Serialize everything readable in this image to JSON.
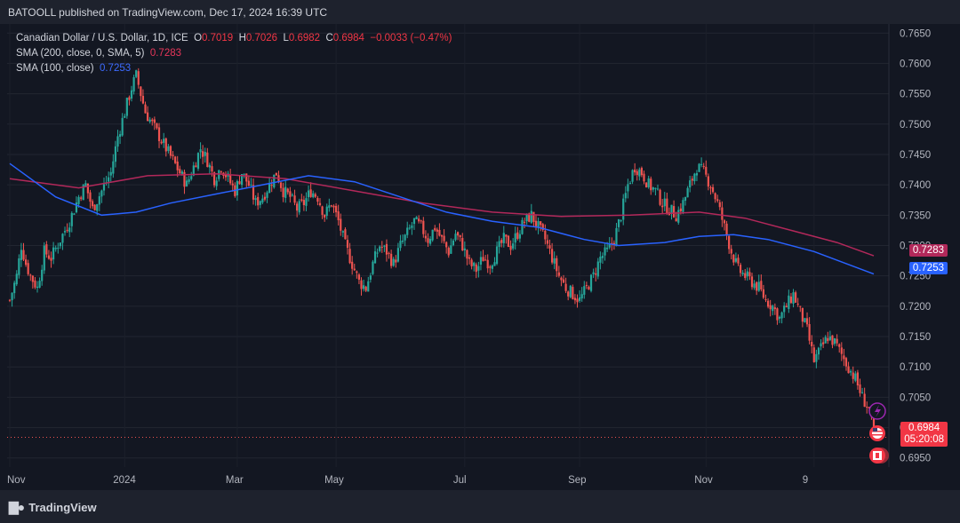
{
  "header": {
    "published_text": "BATOOLL published on TradingView.com, Dec 17, 2024 16:39 UTC"
  },
  "legend": {
    "symbol_line": "Canadian Dollar / U.S. Dollar, 1D, ICE",
    "o_label": "O",
    "o_value": "0.7019",
    "h_label": "H",
    "h_value": "0.7026",
    "l_label": "L",
    "l_value": "0.6982",
    "c_label": "C",
    "c_value": "0.6984",
    "change": "−0.0033 (−0.47%)",
    "sma200_label": "SMA (200, close, 0, SMA, 5)",
    "sma200_value": "0.7283",
    "sma100_label": "SMA (100, close)",
    "sma100_value": "0.7253"
  },
  "price_tags": {
    "sma200": "0.7283",
    "sma100": "0.7253",
    "last_price": "0.6984",
    "countdown": "05:20:08"
  },
  "footer": {
    "brand": "TradingView"
  },
  "colors": {
    "up": "#26a69a",
    "down": "#ef5350",
    "sma200": "#b2285a",
    "sma100": "#2962ff",
    "background": "#131722"
  },
  "chart_data": {
    "type": "candlestick",
    "y_ticks": [
      "0.7650",
      "0.7600",
      "0.7550",
      "0.7500",
      "0.7450",
      "0.7400",
      "0.7350",
      "0.7300",
      "0.7250",
      "0.7200",
      "0.7150",
      "0.7100",
      "0.7050",
      "0.7000",
      "0.6950"
    ],
    "x_ticks": [
      "Nov",
      "2024",
      "Mar",
      "May",
      "Jul",
      "Sep",
      "Nov",
      "9"
    ],
    "ylim": [
      0.6935,
      0.7665
    ],
    "close_path": [
      [
        0,
        0.721
      ],
      [
        3,
        0.725
      ],
      [
        5,
        0.73
      ],
      [
        7,
        0.727
      ],
      [
        9,
        0.725
      ],
      [
        12,
        0.723
      ],
      [
        15,
        0.729
      ],
      [
        18,
        0.728
      ],
      [
        22,
        0.731
      ],
      [
        26,
        0.734
      ],
      [
        30,
        0.738
      ],
      [
        33,
        0.74
      ],
      [
        36,
        0.736
      ],
      [
        40,
        0.739
      ],
      [
        44,
        0.742
      ],
      [
        47,
        0.748
      ],
      [
        50,
        0.752
      ],
      [
        53,
        0.756
      ],
      [
        55,
        0.758
      ],
      [
        57,
        0.755
      ],
      [
        59,
        0.752
      ],
      [
        62,
        0.75
      ],
      [
        65,
        0.748
      ],
      [
        68,
        0.746
      ],
      [
        71,
        0.744
      ],
      [
        74,
        0.742
      ],
      [
        77,
        0.74
      ],
      [
        80,
        0.743
      ],
      [
        83,
        0.746
      ],
      [
        86,
        0.744
      ],
      [
        89,
        0.741
      ],
      [
        92,
        0.743
      ],
      [
        95,
        0.741
      ],
      [
        98,
        0.739
      ],
      [
        101,
        0.742
      ],
      [
        104,
        0.74
      ],
      [
        107,
        0.737
      ],
      [
        110,
        0.738
      ],
      [
        113,
        0.74
      ],
      [
        116,
        0.742
      ],
      [
        119,
        0.739
      ],
      [
        122,
        0.738
      ],
      [
        125,
        0.736
      ],
      [
        128,
        0.737
      ],
      [
        131,
        0.739
      ],
      [
        134,
        0.738
      ],
      [
        137,
        0.735
      ],
      [
        140,
        0.737
      ],
      [
        143,
        0.734
      ],
      [
        146,
        0.73
      ],
      [
        149,
        0.727
      ],
      [
        152,
        0.724
      ],
      [
        155,
        0.723
      ],
      [
        158,
        0.727
      ],
      [
        161,
        0.73
      ],
      [
        164,
        0.729
      ],
      [
        167,
        0.727
      ],
      [
        170,
        0.73
      ],
      [
        173,
        0.732
      ],
      [
        176,
        0.734
      ],
      [
        179,
        0.733
      ],
      [
        182,
        0.731
      ],
      [
        185,
        0.733
      ],
      [
        188,
        0.731
      ],
      [
        191,
        0.729
      ],
      [
        194,
        0.732
      ],
      [
        197,
        0.73
      ],
      [
        200,
        0.727
      ],
      [
        203,
        0.726
      ],
      [
        206,
        0.728
      ],
      [
        209,
        0.727
      ],
      [
        212,
        0.729
      ],
      [
        215,
        0.731
      ],
      [
        218,
        0.73
      ],
      [
        221,
        0.732
      ],
      [
        224,
        0.734
      ],
      [
        227,
        0.735
      ],
      [
        230,
        0.733
      ],
      [
        233,
        0.731
      ],
      [
        236,
        0.728
      ],
      [
        239,
        0.725
      ],
      [
        242,
        0.723
      ],
      [
        245,
        0.722
      ],
      [
        248,
        0.721
      ],
      [
        251,
        0.723
      ],
      [
        254,
        0.725
      ],
      [
        257,
        0.728
      ],
      [
        260,
        0.729
      ],
      [
        263,
        0.731
      ],
      [
        266,
        0.735
      ],
      [
        269,
        0.74
      ],
      [
        272,
        0.743
      ],
      [
        275,
        0.742
      ],
      [
        278,
        0.74
      ],
      [
        281,
        0.739
      ],
      [
        284,
        0.737
      ],
      [
        287,
        0.736
      ],
      [
        290,
        0.735
      ],
      [
        293,
        0.737
      ],
      [
        296,
        0.74
      ],
      [
        299,
        0.743
      ],
      [
        302,
        0.742
      ],
      [
        305,
        0.74
      ],
      [
        308,
        0.737
      ],
      [
        311,
        0.733
      ],
      [
        314,
        0.729
      ],
      [
        317,
        0.726
      ],
      [
        320,
        0.725
      ],
      [
        323,
        0.724
      ],
      [
        326,
        0.723
      ],
      [
        329,
        0.721
      ],
      [
        332,
        0.72
      ],
      [
        335,
        0.718
      ],
      [
        338,
        0.72
      ],
      [
        341,
        0.722
      ],
      [
        344,
        0.719
      ],
      [
        347,
        0.716
      ],
      [
        350,
        0.711
      ],
      [
        353,
        0.713
      ],
      [
        356,
        0.715
      ],
      [
        359,
        0.714
      ],
      [
        362,
        0.712
      ],
      [
        365,
        0.71
      ],
      [
        368,
        0.708
      ],
      [
        371,
        0.705
      ],
      [
        374,
        0.703
      ],
      [
        376,
        0.6984
      ]
    ],
    "sma200_path": [
      [
        0,
        0.741
      ],
      [
        30,
        0.7395
      ],
      [
        60,
        0.7415
      ],
      [
        90,
        0.7418
      ],
      [
        120,
        0.741
      ],
      [
        150,
        0.739
      ],
      [
        180,
        0.737
      ],
      [
        210,
        0.7355
      ],
      [
        240,
        0.7348
      ],
      [
        270,
        0.735
      ],
      [
        300,
        0.7355
      ],
      [
        320,
        0.7345
      ],
      [
        340,
        0.7325
      ],
      [
        360,
        0.7305
      ],
      [
        376,
        0.7283
      ]
    ],
    "sma100_path": [
      [
        0,
        0.7435
      ],
      [
        20,
        0.738
      ],
      [
        40,
        0.735
      ],
      [
        55,
        0.7355
      ],
      [
        70,
        0.737
      ],
      [
        90,
        0.7385
      ],
      [
        110,
        0.74
      ],
      [
        130,
        0.7415
      ],
      [
        150,
        0.7405
      ],
      [
        170,
        0.738
      ],
      [
        190,
        0.7355
      ],
      [
        210,
        0.734
      ],
      [
        230,
        0.733
      ],
      [
        250,
        0.731
      ],
      [
        265,
        0.73
      ],
      [
        285,
        0.7305
      ],
      [
        300,
        0.7315
      ],
      [
        315,
        0.7318
      ],
      [
        330,
        0.731
      ],
      [
        350,
        0.729
      ],
      [
        376,
        0.7253
      ]
    ],
    "last_price": 0.6984,
    "sma200_last": 0.7283,
    "sma100_last": 0.7253
  }
}
